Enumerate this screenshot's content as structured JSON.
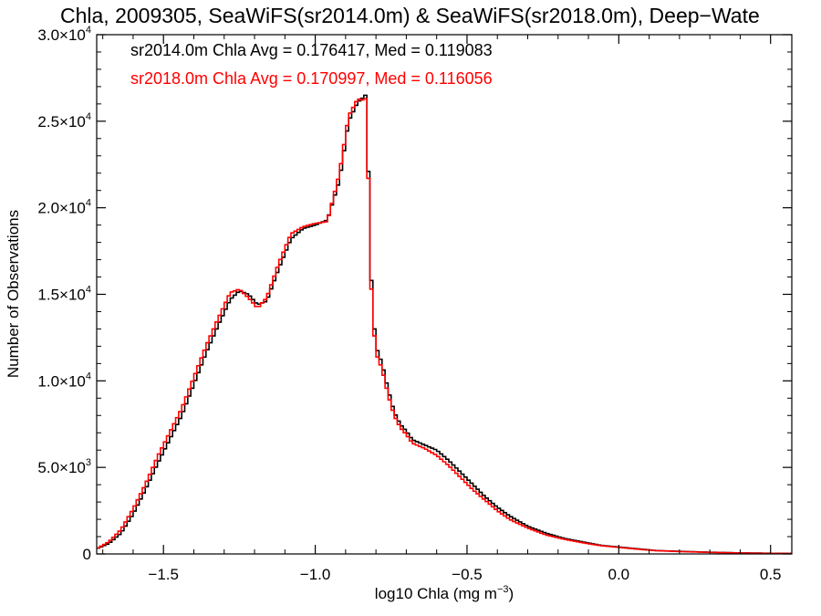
{
  "chart_data": {
    "type": "line",
    "title": "Chla, 2009305, SeaWiFS(sr2014.0m) & SeaWiFS(sr2018.0m), Deep−Wate",
    "xlabel": "log10 Chla (mg m",
    "xlabel_sup": "−3",
    "xlabel_tail": ")",
    "ylabel": "Number of Observations",
    "xlim": [
      -1.72,
      0.57
    ],
    "ylim": [
      0,
      30000
    ],
    "grid": false,
    "x_ticks": [
      {
        "value": -1.5,
        "label": "−1.5"
      },
      {
        "value": -1.0,
        "label": "−1.0"
      },
      {
        "value": -0.5,
        "label": "−0.5"
      },
      {
        "value": 0.0,
        "label": "0.0"
      },
      {
        "value": 0.5,
        "label": "0.5"
      }
    ],
    "y_ticks": [
      {
        "value": 0,
        "mant": "0",
        "exp": ""
      },
      {
        "value": 5000,
        "mant": "5.0×10",
        "exp": "3"
      },
      {
        "value": 10000,
        "mant": "1.0×10",
        "exp": "4"
      },
      {
        "value": 15000,
        "mant": "1.5×10",
        "exp": "4"
      },
      {
        "value": 20000,
        "mant": "2.0×10",
        "exp": "4"
      },
      {
        "value": 25000,
        "mant": "2.5×10",
        "exp": "4"
      },
      {
        "value": 30000,
        "mant": "3.0×10",
        "exp": "4"
      }
    ],
    "annotations": [
      {
        "text": "sr2014.0m Chla Avg = 0.176417, Med = 0.119083",
        "color": "#000000"
      },
      {
        "text": "sr2018.0m Chla Avg = 0.170997, Med = 0.116056",
        "color": "#ff0000"
      }
    ],
    "series": [
      {
        "color": "#000000",
        "x": [
          -1.72,
          -1.68,
          -1.64,
          -1.6,
          -1.56,
          -1.52,
          -1.48,
          -1.44,
          -1.4,
          -1.36,
          -1.32,
          -1.28,
          -1.25,
          -1.22,
          -1.19,
          -1.16,
          -1.12,
          -1.08,
          -1.04,
          -1.0,
          -0.96,
          -0.92,
          -0.89,
          -0.86,
          -0.84,
          -0.83,
          -0.82,
          -0.81,
          -0.8,
          -0.78,
          -0.76,
          -0.74,
          -0.72,
          -0.7,
          -0.68,
          -0.64,
          -0.6,
          -0.56,
          -0.52,
          -0.48,
          -0.44,
          -0.4,
          -0.36,
          -0.3,
          -0.24,
          -0.18,
          -0.12,
          -0.06,
          0.0,
          0.06,
          0.12,
          0.2,
          0.3,
          0.4,
          0.5,
          0.57
        ],
        "y": [
          300,
          600,
          1200,
          2300,
          3700,
          5200,
          6600,
          8000,
          9800,
          11600,
          13200,
          14700,
          15200,
          15000,
          14400,
          14600,
          16500,
          18200,
          18800,
          19000,
          19300,
          21600,
          25000,
          26100,
          26400,
          26600,
          17600,
          14000,
          12000,
          11000,
          9500,
          8200,
          7500,
          7100,
          6600,
          6300,
          6000,
          5400,
          4700,
          4000,
          3300,
          2700,
          2200,
          1600,
          1200,
          900,
          700,
          500,
          400,
          300,
          200,
          150,
          100,
          60,
          40,
          30
        ]
      },
      {
        "color": "#ff0000",
        "x": [
          -1.72,
          -1.68,
          -1.64,
          -1.6,
          -1.56,
          -1.52,
          -1.48,
          -1.44,
          -1.4,
          -1.36,
          -1.32,
          -1.28,
          -1.25,
          -1.22,
          -1.19,
          -1.16,
          -1.12,
          -1.08,
          -1.04,
          -1.0,
          -0.96,
          -0.92,
          -0.89,
          -0.86,
          -0.84,
          -0.83,
          -0.82,
          -0.81,
          -0.8,
          -0.78,
          -0.76,
          -0.74,
          -0.72,
          -0.7,
          -0.68,
          -0.64,
          -0.6,
          -0.56,
          -0.52,
          -0.48,
          -0.44,
          -0.4,
          -0.36,
          -0.3,
          -0.24,
          -0.18,
          -0.12,
          -0.06,
          0.0,
          0.06,
          0.12,
          0.2,
          0.3,
          0.4,
          0.5,
          0.57
        ],
        "y": [
          300,
          700,
          1400,
          2600,
          4000,
          5600,
          7000,
          8400,
          10200,
          12000,
          13600,
          15100,
          15300,
          14800,
          14200,
          14800,
          16800,
          18500,
          18900,
          19100,
          19200,
          22000,
          25300,
          26300,
          26200,
          26400,
          17000,
          13600,
          11600,
          10700,
          9200,
          8000,
          7300,
          6900,
          6400,
          6100,
          5700,
          5100,
          4400,
          3700,
          3100,
          2500,
          2000,
          1500,
          1100,
          850,
          650,
          480,
          380,
          280,
          190,
          140,
          90,
          55,
          35,
          25
        ]
      }
    ]
  }
}
